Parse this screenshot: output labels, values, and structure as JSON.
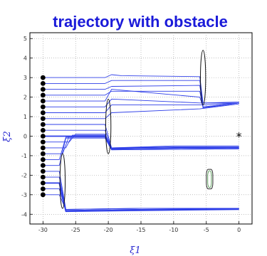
{
  "chart_data": {
    "type": "line",
    "title": "trajectory with obstacle",
    "xlabel": "ξ1",
    "ylabel": "ξ2",
    "xlim": [
      -32,
      2
    ],
    "ylim": [
      -4.5,
      5.3
    ],
    "grid": true,
    "x_ticks": [
      -30,
      -25,
      -20,
      -15,
      -10,
      -5,
      0
    ],
    "y_ticks": [
      5,
      4,
      3,
      2,
      1,
      0,
      -1,
      -2,
      -3,
      -4
    ],
    "trajectory_color": "#2f3fe8",
    "start_points": {
      "x": -30,
      "y": [
        3.0,
        2.7,
        2.4,
        2.1,
        1.8,
        1.5,
        1.2,
        0.9,
        0.6,
        0.3,
        0.0,
        -0.3,
        -0.6,
        -0.9,
        -1.2,
        -1.5,
        -1.8,
        -2.1,
        -2.4,
        -2.7,
        -3.0
      ]
    },
    "target": {
      "x": 0,
      "y": 0,
      "marker": "*"
    },
    "obstacles": [
      {
        "cx": -27,
        "cy": -2.3,
        "rx": 0.4,
        "ry": 1.4
      },
      {
        "cx": -20,
        "cy": 0.5,
        "rx": 0.4,
        "ry": 1.4
      },
      {
        "cx": -5.5,
        "cy": 3.0,
        "rx": 0.4,
        "ry": 1.4
      },
      {
        "cx": -4.5,
        "cy": -2.2,
        "rx": 0.5,
        "ry": 0.5,
        "shape": "rounded-square"
      }
    ],
    "series": [
      {
        "values": [
          [
            -30,
            3.0
          ],
          [
            -20.5,
            3.0
          ],
          [
            -19.5,
            3.15
          ],
          [
            -18,
            3.1
          ],
          [
            -6,
            3.05
          ],
          [
            -5.5,
            1.7
          ],
          [
            0,
            1.75
          ]
        ]
      },
      {
        "values": [
          [
            -30,
            2.7
          ],
          [
            -20.5,
            2.7
          ],
          [
            -19.5,
            2.85
          ],
          [
            -6,
            2.85
          ],
          [
            -5.5,
            1.5
          ],
          [
            0,
            1.7
          ]
        ]
      },
      {
        "values": [
          [
            -30,
            2.4
          ],
          [
            -20.5,
            2.4
          ],
          [
            -19.5,
            2.55
          ],
          [
            -6,
            2.6
          ],
          [
            -5.5,
            1.45
          ],
          [
            0,
            1.7
          ]
        ]
      },
      {
        "values": [
          [
            -30,
            2.1
          ],
          [
            -20.5,
            2.1
          ],
          [
            -19.5,
            2.3
          ],
          [
            -6,
            2.3
          ],
          [
            -5.5,
            1.45
          ],
          [
            0,
            1.7
          ]
        ]
      },
      {
        "values": [
          [
            -30,
            1.8
          ],
          [
            -20.5,
            1.8
          ],
          [
            -19.5,
            2.4
          ],
          [
            -6,
            2.0
          ],
          [
            -5.5,
            1.5
          ],
          [
            0,
            1.7
          ]
        ]
      },
      {
        "values": [
          [
            -30,
            1.5
          ],
          [
            -20.5,
            1.5
          ],
          [
            -19.5,
            1.9
          ],
          [
            -6,
            1.7
          ],
          [
            0,
            1.7
          ]
        ]
      },
      {
        "values": [
          [
            -30,
            1.2
          ],
          [
            -20.5,
            1.2
          ],
          [
            -19.5,
            1.6
          ],
          [
            -6,
            1.6
          ],
          [
            0,
            1.7
          ]
        ]
      },
      {
        "values": [
          [
            -30,
            0.9
          ],
          [
            -20.5,
            0.9
          ],
          [
            -19.5,
            1.2
          ],
          [
            -6,
            1.4
          ],
          [
            0,
            1.65
          ]
        ]
      },
      {
        "values": [
          [
            -30,
            0.6
          ],
          [
            -20.5,
            0.6
          ],
          [
            -19.5,
            -0.6
          ],
          [
            -10,
            -0.5
          ],
          [
            0,
            -0.5
          ]
        ]
      },
      {
        "values": [
          [
            -30,
            0.3
          ],
          [
            -20.5,
            0.3
          ],
          [
            -19.5,
            -0.6
          ],
          [
            -10,
            -0.55
          ],
          [
            0,
            -0.55
          ]
        ]
      },
      {
        "values": [
          [
            -30,
            0.0
          ],
          [
            -20.5,
            0.0
          ],
          [
            -19.5,
            -0.65
          ],
          [
            -10,
            -0.6
          ],
          [
            0,
            -0.6
          ]
        ]
      },
      {
        "values": [
          [
            -30,
            -0.3
          ],
          [
            -26,
            -0.3
          ],
          [
            -25,
            0.1
          ],
          [
            -20.5,
            0.1
          ],
          [
            -19.5,
            -0.6
          ],
          [
            0,
            -0.6
          ]
        ]
      },
      {
        "values": [
          [
            -30,
            -0.6
          ],
          [
            -26.5,
            -0.6
          ],
          [
            -25.5,
            0.05
          ],
          [
            -20.5,
            0.05
          ],
          [
            -19.5,
            -0.65
          ],
          [
            0,
            -0.6
          ]
        ]
      },
      {
        "values": [
          [
            -30,
            -0.9
          ],
          [
            -27,
            -0.9
          ],
          [
            -26,
            0.0
          ],
          [
            -20.5,
            0.0
          ],
          [
            -19.5,
            -0.65
          ],
          [
            0,
            -0.6
          ]
        ]
      },
      {
        "values": [
          [
            -30,
            -1.2
          ],
          [
            -27.5,
            -1.2
          ],
          [
            -26.5,
            -0.05
          ],
          [
            -20.5,
            -0.05
          ],
          [
            -19.5,
            -0.7
          ],
          [
            0,
            -0.65
          ]
        ]
      },
      {
        "values": [
          [
            -30,
            -1.5
          ],
          [
            -27.5,
            -1.5
          ],
          [
            -26.5,
            -0.1
          ],
          [
            -20.5,
            -0.1
          ],
          [
            -19.5,
            -0.7
          ],
          [
            0,
            -0.65
          ]
        ]
      },
      {
        "values": [
          [
            -30,
            -1.8
          ],
          [
            -27.5,
            -1.8
          ],
          [
            -26.5,
            -3.75
          ],
          [
            -15,
            -3.7
          ],
          [
            0,
            -3.7
          ]
        ]
      },
      {
        "values": [
          [
            -30,
            -2.1
          ],
          [
            -27.5,
            -2.1
          ],
          [
            -26.5,
            -3.8
          ],
          [
            -15,
            -3.75
          ],
          [
            0,
            -3.72
          ]
        ]
      },
      {
        "values": [
          [
            -30,
            -2.4
          ],
          [
            -27.5,
            -2.4
          ],
          [
            -26.5,
            -3.85
          ],
          [
            -15,
            -3.8
          ],
          [
            0,
            -3.75
          ]
        ]
      },
      {
        "values": [
          [
            -30,
            -2.7
          ],
          [
            -27.5,
            -2.7
          ],
          [
            -26.5,
            -3.8
          ],
          [
            -15,
            -3.75
          ],
          [
            0,
            -3.72
          ]
        ]
      },
      {
        "values": [
          [
            -30,
            -3.0
          ],
          [
            -27.5,
            -3.0
          ],
          [
            -26.5,
            -3.75
          ],
          [
            -15,
            -3.7
          ],
          [
            0,
            -3.7
          ]
        ]
      }
    ]
  }
}
